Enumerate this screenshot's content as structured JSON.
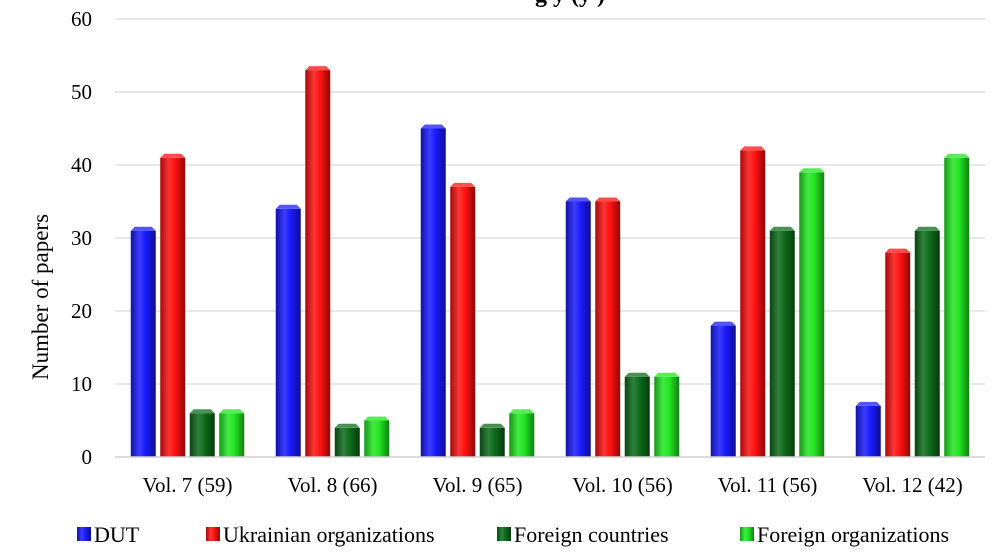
{
  "chart_data": {
    "type": "bar",
    "title": "g    y     (y  )",
    "ylabel": "Number of papers",
    "xlabel": "",
    "ylim": [
      0,
      60
    ],
    "yticks": [
      0,
      10,
      20,
      30,
      40,
      50,
      60
    ],
    "grid": true,
    "legend_position": "bottom",
    "categories": [
      "Vol. 7 (59)",
      "Vol. 8 (66)",
      "Vol. 9 (65)",
      "Vol. 10 (56)",
      "Vol. 11 (56)",
      "Vol. 12 (42)"
    ],
    "series": [
      {
        "name": "DUT",
        "color": "#1a1aff",
        "values": [
          31,
          34,
          45,
          35,
          18,
          7
        ]
      },
      {
        "name": "Ukrainian organizations",
        "color": "#ff1111",
        "values": [
          41,
          53,
          37,
          35,
          42,
          28
        ]
      },
      {
        "name": "Foreign countries",
        "color": "#0d6b1a",
        "values": [
          6,
          4,
          4,
          11,
          31,
          31
        ]
      },
      {
        "name": "Foreign organizations",
        "color": "#22e622",
        "values": [
          6,
          5,
          6,
          11,
          39,
          41
        ]
      }
    ]
  }
}
